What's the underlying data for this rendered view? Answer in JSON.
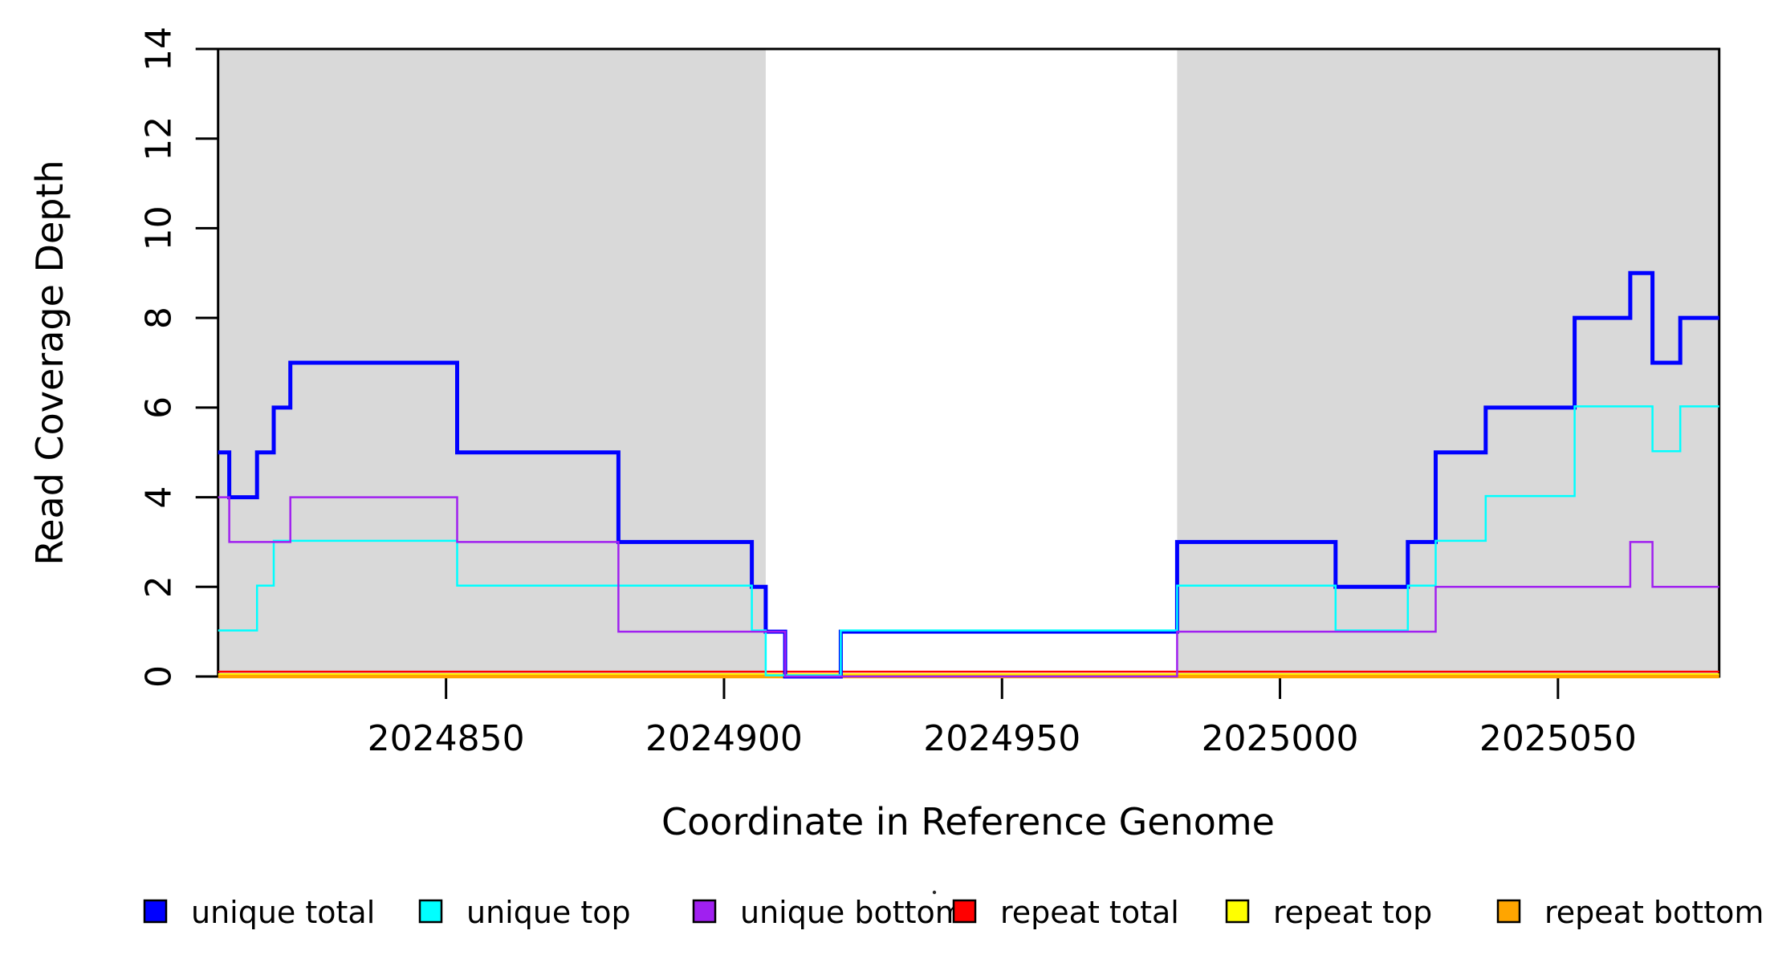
{
  "figure": {
    "background": "#ffffff",
    "plot_background_shaded": "#d9d9d9"
  },
  "chart_data": {
    "type": "line",
    "subtype": "step-coverage",
    "title": "",
    "xlabel": "Coordinate in Reference Genome",
    "ylabel": "Read Coverage Depth",
    "xlim": [
      2024809,
      2025079
    ],
    "ylim": [
      0,
      14
    ],
    "grid": false,
    "x_ticks": [
      2024850,
      2024900,
      2024950,
      2025000,
      2025050
    ],
    "x_tick_labels": [
      "2024850",
      "2024900",
      "2024950",
      "2025000",
      "2025050"
    ],
    "y_ticks": [
      0,
      2,
      4,
      6,
      8,
      10,
      12,
      14
    ],
    "y_tick_labels": [
      "0",
      "2",
      "4",
      "6",
      "8",
      "10",
      "12",
      "14"
    ],
    "shaded_regions": [
      {
        "x0": 2024809,
        "x1": 2024907.5,
        "color": "#d9d9d9"
      },
      {
        "x0": 2024981.5,
        "x1": 2025079,
        "color": "#d9d9d9"
      }
    ],
    "series": [
      {
        "name": "unique total",
        "color": "#0000ff",
        "segments": [
          [
            2024809,
            2024811,
            5
          ],
          [
            2024811,
            2024816,
            4
          ],
          [
            2024816,
            2024819,
            5
          ],
          [
            2024819,
            2024822,
            6
          ],
          [
            2024822,
            2024852,
            7
          ],
          [
            2024852,
            2024881,
            5
          ],
          [
            2024881,
            2024905,
            3
          ],
          [
            2024905,
            2024907.5,
            2
          ],
          [
            2024907.5,
            2024911,
            1
          ],
          [
            2024911,
            2024921,
            0
          ],
          [
            2024921,
            2024981.5,
            1
          ],
          [
            2024981.5,
            2025010,
            3
          ],
          [
            2025010,
            2025023,
            2
          ],
          [
            2025023,
            2025028,
            3
          ],
          [
            2025028,
            2025037,
            5
          ],
          [
            2025037,
            2025053,
            6
          ],
          [
            2025053,
            2025063,
            8
          ],
          [
            2025063,
            2025067,
            9
          ],
          [
            2025067,
            2025072,
            7
          ],
          [
            2025072,
            2025079,
            8
          ]
        ]
      },
      {
        "name": "unique top",
        "color": "#00ffff",
        "segments": [
          [
            2024809,
            2024816,
            1
          ],
          [
            2024816,
            2024819,
            2
          ],
          [
            2024819,
            2024852,
            3
          ],
          [
            2024852,
            2024905,
            2
          ],
          [
            2024905,
            2024907.5,
            1
          ],
          [
            2024907.5,
            2024921,
            0
          ],
          [
            2024921,
            2024981.5,
            1
          ],
          [
            2024981.5,
            2025010,
            2
          ],
          [
            2025010,
            2025023,
            1
          ],
          [
            2025023,
            2025028,
            2
          ],
          [
            2025028,
            2025037,
            3
          ],
          [
            2025037,
            2025053,
            4
          ],
          [
            2025053,
            2025067,
            6
          ],
          [
            2025067,
            2025072,
            5
          ],
          [
            2025072,
            2025079,
            6
          ]
        ]
      },
      {
        "name": "unique bottom",
        "color": "#a020f0",
        "segments": [
          [
            2024809,
            2024811,
            4
          ],
          [
            2024811,
            2024822,
            3
          ],
          [
            2024822,
            2024852,
            4
          ],
          [
            2024852,
            2024881,
            3
          ],
          [
            2024881,
            2024911,
            1
          ],
          [
            2024911,
            2024981.5,
            0
          ],
          [
            2024981.5,
            2025028,
            1
          ],
          [
            2025028,
            2025063,
            2
          ],
          [
            2025063,
            2025067,
            3
          ],
          [
            2025067,
            2025079,
            2
          ]
        ]
      },
      {
        "name": "repeat total",
        "color": "#ff0000",
        "segments": [
          [
            2024809,
            2025079,
            0
          ]
        ]
      },
      {
        "name": "repeat top",
        "color": "#ffff00",
        "segments": [
          [
            2024809,
            2025079,
            0
          ]
        ]
      },
      {
        "name": "repeat bottom",
        "color": "#ffa500",
        "segments": [
          [
            2024809,
            2025079,
            0
          ]
        ]
      }
    ],
    "legend": {
      "position": "bottom",
      "entries": [
        {
          "label": "unique total",
          "color": "#0000ff"
        },
        {
          "label": "unique top",
          "color": "#00ffff"
        },
        {
          "label": "unique bottom",
          "color": "#a020f0"
        },
        {
          "label": "repeat total",
          "color": "#ff0000"
        },
        {
          "label": "repeat top",
          "color": "#ffff00"
        },
        {
          "label": "repeat bottom",
          "color": "#ffa500"
        }
      ]
    }
  }
}
